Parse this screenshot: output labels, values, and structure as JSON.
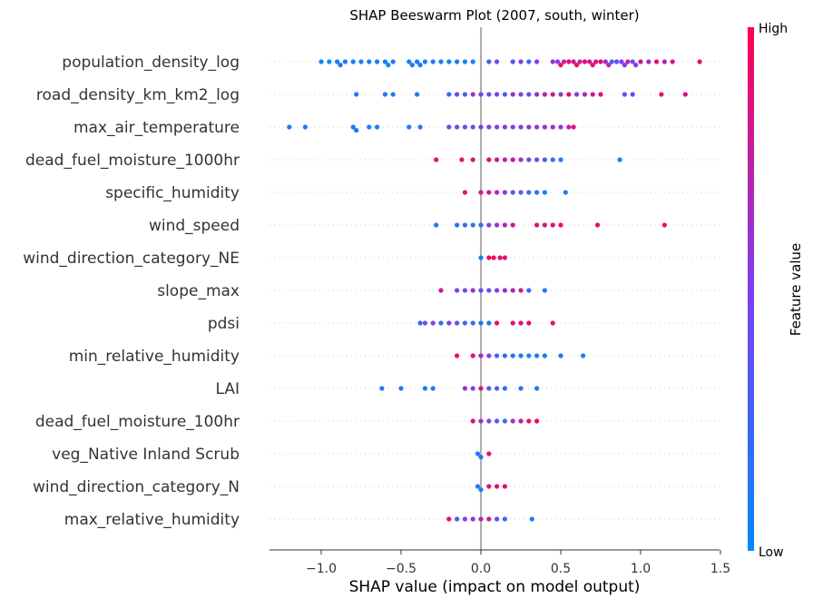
{
  "chart_data": {
    "type": "scatter",
    "subtype": "beeswarm",
    "title": "SHAP Beeswarm Plot (2007, south, winter)",
    "xlabel": "SHAP value (impact on model output)",
    "xlim": [
      -1.32,
      1.5
    ],
    "xticks": [
      -1.0,
      -0.5,
      0.0,
      0.5,
      1.0,
      1.5
    ],
    "xtick_labels": [
      "−1.0",
      "−0.5",
      "0.0",
      "0.5",
      "1.0",
      "1.5"
    ],
    "colorbar": {
      "title": "Feature value",
      "high_label": "High",
      "low_label": "Low",
      "low_color": "#008bfb",
      "mid_color": "#7e3ff0",
      "high_color": "#ff0052"
    },
    "features": [
      {
        "name": "population_density_log",
        "points": [
          [
            -1.0,
            0.05
          ],
          [
            -0.95,
            0.0
          ],
          [
            -0.9,
            0.1
          ],
          [
            -0.88,
            0.15
          ],
          [
            -0.85,
            0.05
          ],
          [
            -0.8,
            0.1
          ],
          [
            -0.75,
            0.05
          ],
          [
            -0.7,
            0.1
          ],
          [
            -0.65,
            0.05
          ],
          [
            -0.6,
            0.1
          ],
          [
            -0.58,
            0.0
          ],
          [
            -0.55,
            0.1
          ],
          [
            -0.45,
            0.05
          ],
          [
            -0.43,
            0.1
          ],
          [
            -0.4,
            0.15
          ],
          [
            -0.38,
            0.05
          ],
          [
            -0.35,
            0.05
          ],
          [
            -0.3,
            0.1
          ],
          [
            -0.25,
            0.1
          ],
          [
            -0.2,
            0.05
          ],
          [
            -0.15,
            0.1
          ],
          [
            -0.1,
            0.05
          ],
          [
            -0.05,
            0.1
          ],
          [
            0.05,
            0.3
          ],
          [
            0.1,
            0.5
          ],
          [
            0.2,
            0.4
          ],
          [
            0.25,
            0.5
          ],
          [
            0.3,
            0.3
          ],
          [
            0.35,
            0.5
          ],
          [
            0.45,
            0.6
          ],
          [
            0.48,
            0.5
          ],
          [
            0.5,
            0.9
          ],
          [
            0.52,
            0.7
          ],
          [
            0.55,
            0.95
          ],
          [
            0.58,
            0.8
          ],
          [
            0.6,
            0.9
          ],
          [
            0.62,
            0.7
          ],
          [
            0.65,
            0.95
          ],
          [
            0.68,
            0.8
          ],
          [
            0.7,
            0.9
          ],
          [
            0.72,
            0.85
          ],
          [
            0.75,
            0.95
          ],
          [
            0.78,
            0.6
          ],
          [
            0.8,
            0.7
          ],
          [
            0.82,
            0.3
          ],
          [
            0.85,
            0.4
          ],
          [
            0.88,
            0.5
          ],
          [
            0.9,
            0.6
          ],
          [
            0.92,
            0.7
          ],
          [
            0.95,
            0.4
          ],
          [
            0.97,
            0.55
          ],
          [
            1.0,
            0.8
          ],
          [
            1.05,
            0.6
          ],
          [
            1.1,
            0.9
          ],
          [
            1.15,
            0.7
          ],
          [
            1.2,
            0.8
          ],
          [
            1.37,
            0.9
          ]
        ]
      },
      {
        "name": "road_density_km_km2_log",
        "points": [
          [
            -0.78,
            0.1
          ],
          [
            -0.6,
            0.15
          ],
          [
            -0.55,
            0.1
          ],
          [
            -0.4,
            0.1
          ],
          [
            -0.2,
            0.2
          ],
          [
            -0.15,
            0.4
          ],
          [
            -0.1,
            0.3
          ],
          [
            -0.05,
            0.6
          ],
          [
            0.0,
            0.5
          ],
          [
            0.05,
            0.4
          ],
          [
            0.1,
            0.5
          ],
          [
            0.15,
            0.3
          ],
          [
            0.2,
            0.6
          ],
          [
            0.25,
            0.5
          ],
          [
            0.3,
            0.4
          ],
          [
            0.35,
            0.6
          ],
          [
            0.4,
            0.7
          ],
          [
            0.45,
            0.8
          ],
          [
            0.5,
            0.6
          ],
          [
            0.55,
            0.9
          ],
          [
            0.6,
            0.5
          ],
          [
            0.65,
            0.7
          ],
          [
            0.7,
            0.8
          ],
          [
            0.75,
            0.9
          ],
          [
            0.9,
            0.4
          ],
          [
            0.95,
            0.5
          ],
          [
            1.13,
            0.9
          ],
          [
            1.28,
            0.85
          ]
        ]
      },
      {
        "name": "max_air_temperature",
        "points": [
          [
            -1.2,
            0.1
          ],
          [
            -1.1,
            0.1
          ],
          [
            -0.8,
            0.1
          ],
          [
            -0.78,
            0.15
          ],
          [
            -0.7,
            0.1
          ],
          [
            -0.65,
            0.1
          ],
          [
            -0.45,
            0.1
          ],
          [
            -0.38,
            0.15
          ],
          [
            -0.2,
            0.4
          ],
          [
            -0.15,
            0.35
          ],
          [
            -0.1,
            0.45
          ],
          [
            -0.05,
            0.4
          ],
          [
            0.0,
            0.5
          ],
          [
            0.05,
            0.45
          ],
          [
            0.1,
            0.5
          ],
          [
            0.15,
            0.55
          ],
          [
            0.2,
            0.5
          ],
          [
            0.25,
            0.55
          ],
          [
            0.3,
            0.6
          ],
          [
            0.35,
            0.55
          ],
          [
            0.4,
            0.6
          ],
          [
            0.45,
            0.65
          ],
          [
            0.5,
            0.6
          ],
          [
            0.55,
            0.7
          ],
          [
            0.58,
            0.9
          ]
        ]
      },
      {
        "name": "dead_fuel_moisture_1000hr",
        "points": [
          [
            -0.28,
            0.9
          ],
          [
            -0.12,
            0.9
          ],
          [
            -0.05,
            0.85
          ],
          [
            0.05,
            0.9
          ],
          [
            0.1,
            0.8
          ],
          [
            0.15,
            0.7
          ],
          [
            0.2,
            0.8
          ],
          [
            0.25,
            0.6
          ],
          [
            0.3,
            0.5
          ],
          [
            0.35,
            0.4
          ],
          [
            0.4,
            0.3
          ],
          [
            0.45,
            0.2
          ],
          [
            0.5,
            0.15
          ],
          [
            0.87,
            0.1
          ]
        ]
      },
      {
        "name": "specific_humidity",
        "points": [
          [
            -0.1,
            0.9
          ],
          [
            0.0,
            0.8
          ],
          [
            0.05,
            0.85
          ],
          [
            0.1,
            0.7
          ],
          [
            0.15,
            0.5
          ],
          [
            0.2,
            0.4
          ],
          [
            0.25,
            0.3
          ],
          [
            0.3,
            0.2
          ],
          [
            0.35,
            0.15
          ],
          [
            0.4,
            0.1
          ],
          [
            0.53,
            0.1
          ]
        ]
      },
      {
        "name": "wind_speed",
        "points": [
          [
            -0.28,
            0.1
          ],
          [
            -0.15,
            0.15
          ],
          [
            -0.1,
            0.2
          ],
          [
            -0.05,
            0.15
          ],
          [
            0.0,
            0.2
          ],
          [
            0.05,
            0.5
          ],
          [
            0.1,
            0.6
          ],
          [
            0.15,
            0.7
          ],
          [
            0.2,
            0.8
          ],
          [
            0.35,
            0.9
          ],
          [
            0.4,
            0.85
          ],
          [
            0.45,
            0.9
          ],
          [
            0.5,
            0.95
          ],
          [
            0.73,
            0.9
          ],
          [
            1.15,
            0.9
          ]
        ]
      },
      {
        "name": "wind_direction_category_NE",
        "points": [
          [
            0.0,
            0.1
          ],
          [
            0.05,
            0.9
          ],
          [
            0.08,
            0.95
          ],
          [
            0.12,
            0.9
          ],
          [
            0.15,
            0.9
          ]
        ]
      },
      {
        "name": "slope_max",
        "points": [
          [
            -0.25,
            0.8
          ],
          [
            -0.15,
            0.5
          ],
          [
            -0.1,
            0.4
          ],
          [
            -0.05,
            0.6
          ],
          [
            0.0,
            0.5
          ],
          [
            0.05,
            0.4
          ],
          [
            0.1,
            0.5
          ],
          [
            0.15,
            0.6
          ],
          [
            0.2,
            0.7
          ],
          [
            0.25,
            0.8
          ],
          [
            0.3,
            0.2
          ],
          [
            0.4,
            0.1
          ]
        ]
      },
      {
        "name": "pdsi",
        "points": [
          [
            -0.38,
            0.3
          ],
          [
            -0.35,
            0.4
          ],
          [
            -0.3,
            0.5
          ],
          [
            -0.25,
            0.2
          ],
          [
            -0.2,
            0.5
          ],
          [
            -0.15,
            0.4
          ],
          [
            -0.1,
            0.3
          ],
          [
            -0.05,
            0.2
          ],
          [
            0.0,
            0.2
          ],
          [
            0.05,
            0.1
          ],
          [
            0.1,
            0.9
          ],
          [
            0.2,
            0.85
          ],
          [
            0.25,
            0.9
          ],
          [
            0.3,
            0.9
          ],
          [
            0.45,
            0.9
          ]
        ]
      },
      {
        "name": "min_relative_humidity",
        "points": [
          [
            -0.15,
            0.9
          ],
          [
            -0.05,
            0.9
          ],
          [
            0.0,
            0.7
          ],
          [
            0.05,
            0.5
          ],
          [
            0.1,
            0.3
          ],
          [
            0.15,
            0.2
          ],
          [
            0.2,
            0.2
          ],
          [
            0.25,
            0.1
          ],
          [
            0.3,
            0.1
          ],
          [
            0.35,
            0.1
          ],
          [
            0.4,
            0.1
          ],
          [
            0.5,
            0.1
          ],
          [
            0.64,
            0.1
          ]
        ]
      },
      {
        "name": "LAI",
        "points": [
          [
            -0.62,
            0.1
          ],
          [
            -0.5,
            0.1
          ],
          [
            -0.35,
            0.1
          ],
          [
            -0.3,
            0.15
          ],
          [
            -0.1,
            0.6
          ],
          [
            -0.05,
            0.5
          ],
          [
            0.0,
            0.8
          ],
          [
            0.05,
            0.4
          ],
          [
            0.1,
            0.3
          ],
          [
            0.15,
            0.2
          ],
          [
            0.25,
            0.2
          ],
          [
            0.35,
            0.1
          ]
        ]
      },
      {
        "name": "dead_fuel_moisture_100hr",
        "points": [
          [
            -0.05,
            0.9
          ],
          [
            0.0,
            0.6
          ],
          [
            0.05,
            0.5
          ],
          [
            0.1,
            0.3
          ],
          [
            0.15,
            0.2
          ],
          [
            0.2,
            0.6
          ],
          [
            0.25,
            0.8
          ],
          [
            0.3,
            0.9
          ],
          [
            0.35,
            0.95
          ]
        ]
      },
      {
        "name": "veg_Native Inland Scrub",
        "points": [
          [
            -0.02,
            0.1
          ],
          [
            0.0,
            0.1
          ],
          [
            0.05,
            0.9
          ]
        ]
      },
      {
        "name": "wind_direction_category_N",
        "points": [
          [
            -0.02,
            0.1
          ],
          [
            0.0,
            0.1
          ],
          [
            0.05,
            0.9
          ],
          [
            0.1,
            0.9
          ],
          [
            0.15,
            0.9
          ]
        ]
      },
      {
        "name": "max_relative_humidity",
        "points": [
          [
            -0.2,
            0.9
          ],
          [
            -0.15,
            0.3
          ],
          [
            -0.1,
            0.5
          ],
          [
            -0.05,
            0.6
          ],
          [
            0.0,
            0.7
          ],
          [
            0.05,
            0.8
          ],
          [
            0.1,
            0.4
          ],
          [
            0.15,
            0.2
          ],
          [
            0.32,
            0.1
          ]
        ]
      }
    ]
  }
}
